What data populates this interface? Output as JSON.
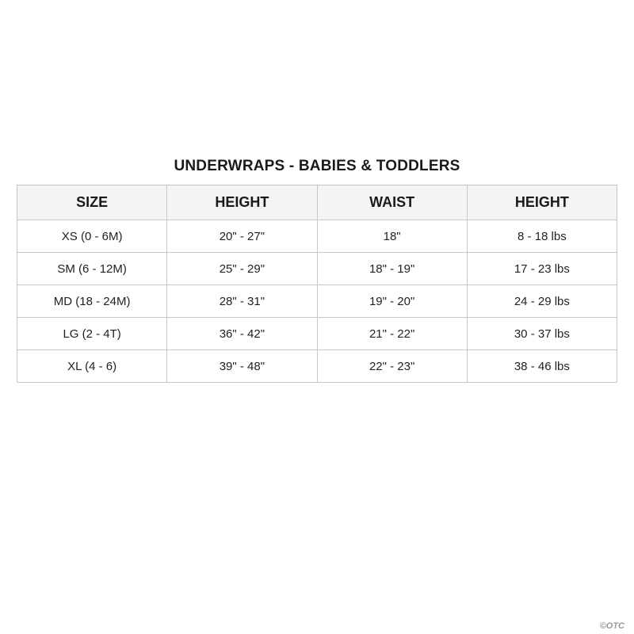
{
  "title": "UNDERWRAPS - BABIES & TODDLERS",
  "headers": [
    "SIZE",
    "HEIGHT",
    "WAIST",
    "HEIGHT"
  ],
  "rows": [
    [
      "XS (0 - 6M)",
      "20\" - 27\"",
      "18\"",
      "8 - 18 lbs"
    ],
    [
      "SM (6 - 12M)",
      "25\" - 29\"",
      "18\" - 19\"",
      "17 - 23 lbs"
    ],
    [
      "MD (18 - 24M)",
      "28\" - 31\"",
      "19\" - 20\"",
      "24 - 29 lbs"
    ],
    [
      "LG (2 - 4T)",
      "36\" - 42\"",
      "21\" - 22\"",
      "30 - 37 lbs"
    ],
    [
      "XL (4 - 6)",
      "39\" - 48\"",
      "22\" - 23\"",
      "38 - 46 lbs"
    ]
  ],
  "watermark": "©OTC"
}
